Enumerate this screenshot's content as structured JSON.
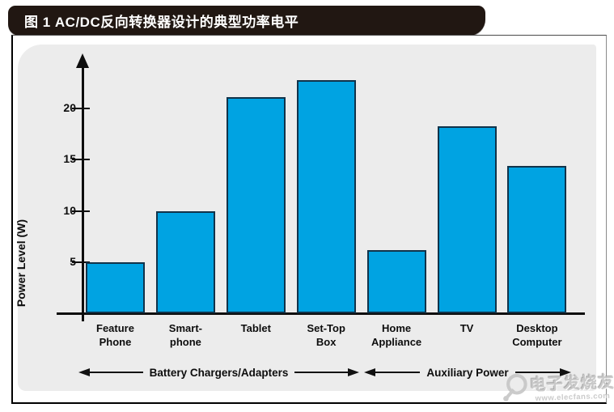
{
  "figure": {
    "title": "图 1 AC/DC反向转换器设计的典型功率电平"
  },
  "chart_data": {
    "type": "bar",
    "title": "图 1 AC/DC反向转换器设计的典型功率电平",
    "xlabel": "",
    "ylabel": "Power Level (W)",
    "ylim": [
      0,
      25
    ],
    "yticks": [
      5,
      10,
      15,
      20
    ],
    "grid": false,
    "legend": null,
    "categories": [
      [
        "Feature",
        "Phone"
      ],
      [
        "Smart-",
        "phone"
      ],
      [
        "Tablet"
      ],
      [
        "Set-Top",
        "Box"
      ],
      [
        "Home",
        "Appliance"
      ],
      [
        "TV"
      ],
      [
        "Desktop",
        "Computer"
      ]
    ],
    "values": [
      5,
      10,
      21.1,
      22.8,
      6.2,
      18.3,
      14.4
    ],
    "bar_color": "#00a3e2",
    "bar_border_color": "#11334a",
    "groups": [
      {
        "label": "Battery Chargers/Adapters",
        "categories": [
          "Feature Phone",
          "Smart-phone",
          "Tablet",
          "Set-Top Box"
        ]
      },
      {
        "label": "Auxiliary Power",
        "categories": [
          "Home Appliance",
          "TV",
          "Desktop Computer"
        ]
      }
    ]
  },
  "watermark": {
    "brand": "电子发烧友",
    "url": "www.elecfans.com"
  }
}
